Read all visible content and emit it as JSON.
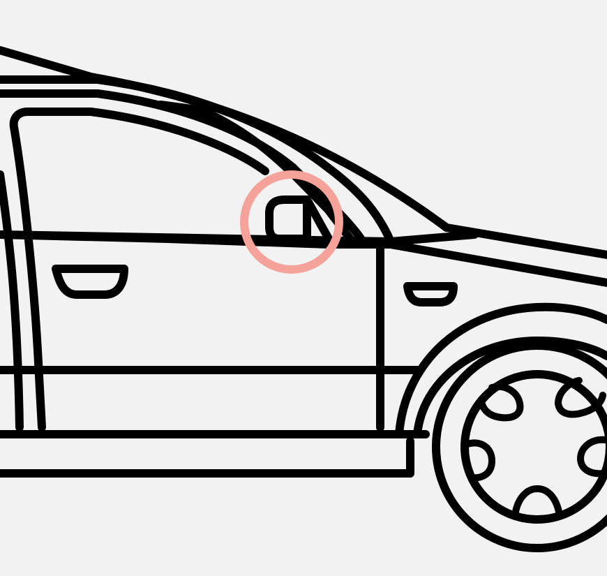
{
  "illustration": {
    "subject": "car-side-view-outline",
    "highlighted_part": "side-mirror"
  },
  "colors": {
    "background": "#f2f2f2",
    "stroke": "#000000",
    "highlight": "#f4a29a"
  }
}
